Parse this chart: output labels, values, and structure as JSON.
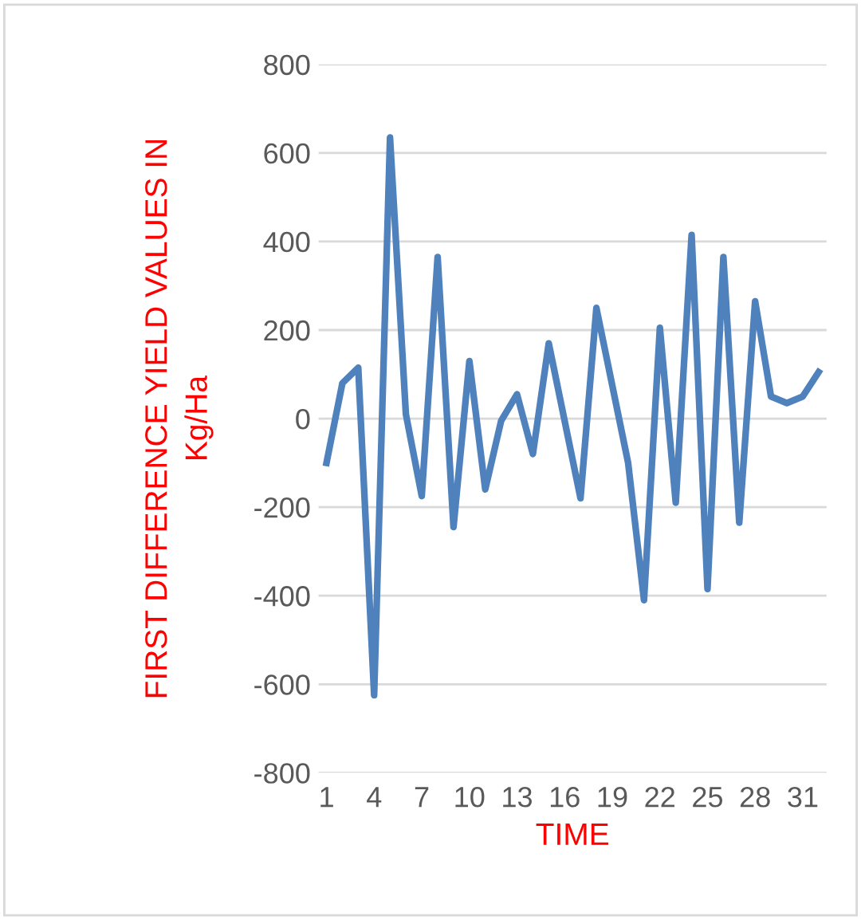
{
  "chart_data": {
    "type": "line",
    "xlabel": "TIME",
    "ylabel": "FIRST DIFFERENCE YIELD VALUES IN\nKg/Ha",
    "categories": [
      "1",
      null,
      null,
      "4",
      null,
      null,
      "7",
      null,
      null,
      "10",
      null,
      null,
      "13",
      null,
      null,
      "16",
      null,
      null,
      "19",
      null,
      null,
      "22",
      null,
      null,
      "25",
      null,
      null,
      "28",
      null,
      null,
      "31",
      null
    ],
    "series": [
      {
        "color": "#4f81bd",
        "values": [
          -100,
          80,
          115,
          -625,
          635,
          10,
          -175,
          365,
          -245,
          130,
          -160,
          -5,
          55,
          -80,
          170,
          -5,
          -180,
          250,
          75,
          -100,
          -410,
          205,
          -190,
          415,
          -385,
          365,
          -235,
          265,
          50,
          35,
          50,
          105
        ]
      }
    ],
    "ylim": [
      -800,
      800
    ],
    "yticks": [
      -800,
      -600,
      -400,
      -200,
      0,
      200,
      400,
      600,
      800
    ],
    "grid": "y",
    "legend": false,
    "marker": "none",
    "line_style": "solid"
  }
}
